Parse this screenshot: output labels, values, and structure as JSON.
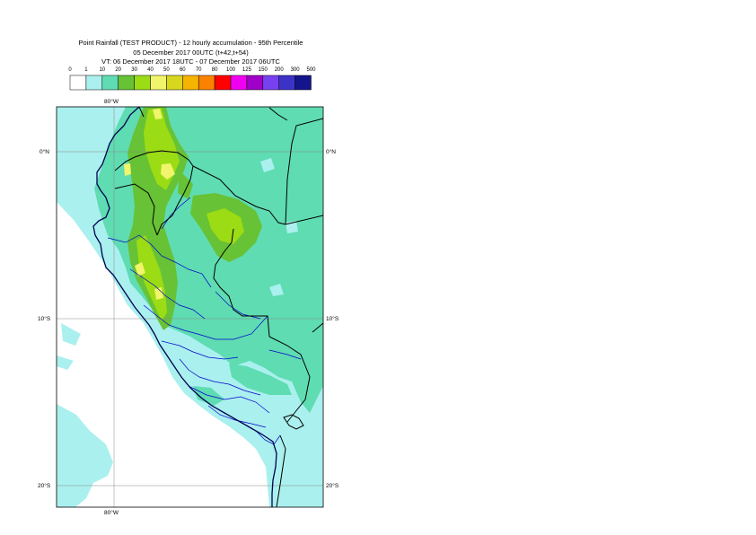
{
  "title": {
    "line1": "Point Rainfall (TEST PRODUCT) - 12 hourly accumulation - 95th Percentile",
    "line2": "05 December 2017 00UTC (t+42,t+54)",
    "line3": "VT: 06 December 2017 18UTC - 07 December 2017 06UTC"
  },
  "legend": {
    "thresholds": [
      "0",
      "1",
      "10",
      "20",
      "30",
      "40",
      "50",
      "60",
      "70",
      "80",
      "100",
      "125",
      "150",
      "200",
      "300",
      "500"
    ],
    "colors": [
      "#ffffff",
      "#aaf0ee",
      "#5fdcb2",
      "#67c235",
      "#9bdc14",
      "#f0f56b",
      "#d7d71e",
      "#f5b400",
      "#fa8200",
      "#ff0000",
      "#f000f0",
      "#a000c8",
      "#7841f0",
      "#3c32c8",
      "#14148c"
    ]
  },
  "map": {
    "lat_labels_left": [
      "0°N",
      "10°S",
      "20°S"
    ],
    "lat_labels_right": [
      "0°N",
      "10°S",
      "20°S"
    ],
    "lon_label_top": "80°W",
    "lon_label_bottom": "80°W",
    "region": "Peru / Ecuador",
    "colors": {
      "coast": "#000050",
      "country_border": "#000000",
      "admin_border": "#0000cc",
      "grid": "#888888"
    }
  }
}
